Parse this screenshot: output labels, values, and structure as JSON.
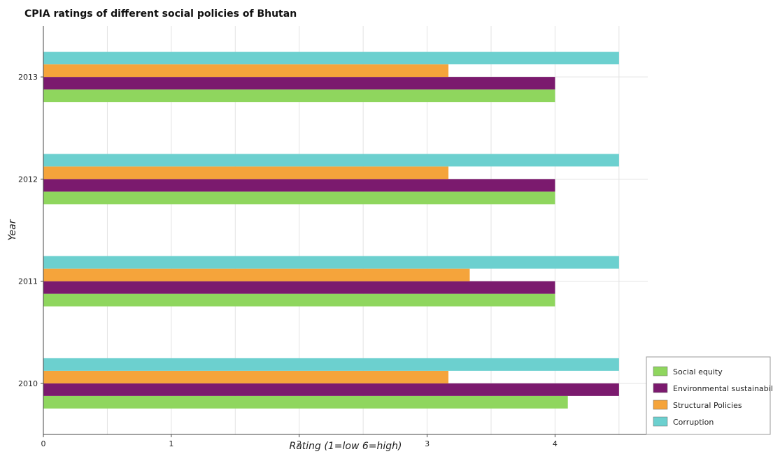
{
  "chart_data": {
    "type": "bar",
    "orientation": "horizontal",
    "title": "CPIA ratings of different social policies of Bhutan",
    "xlabel": "Rating (1=low 6=high)",
    "ylabel": "Year",
    "xlim": [
      0,
      4.725
    ],
    "xticks": [
      0,
      1,
      2,
      3,
      4
    ],
    "grid": true,
    "legend_position": "bottom-right",
    "categories": [
      "2010",
      "2011",
      "2012",
      "2013"
    ],
    "series": [
      {
        "name": "Social equity",
        "color": "#8fd65e",
        "values": [
          4.1,
          4.0,
          4.0,
          4.0
        ]
      },
      {
        "name": "Environmental sustainability",
        "color": "#7b1a6e",
        "values": [
          4.5,
          4.0,
          4.0,
          4.0
        ]
      },
      {
        "name": "Structural Policies",
        "color": "#f5a43b",
        "values": [
          3.1667,
          3.3333,
          3.1667,
          3.1667
        ]
      },
      {
        "name": "Corruption",
        "color": "#6cd0cf",
        "values": [
          4.5,
          4.5,
          4.5,
          4.5
        ]
      }
    ]
  }
}
